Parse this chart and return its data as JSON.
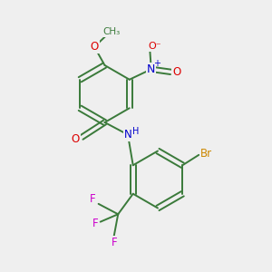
{
  "background_color": "#efefef",
  "bond_color": "#3a7a3a",
  "bond_width": 1.4,
  "atom_colors": {
    "O": "#dd0000",
    "N": "#0000cc",
    "Br": "#cc8800",
    "F": "#cc00cc",
    "C": "#3a7a3a",
    "H": "#3a7a3a"
  },
  "font_size": 8.5,
  "fig_width": 3.0,
  "fig_height": 3.0,
  "dpi": 100
}
